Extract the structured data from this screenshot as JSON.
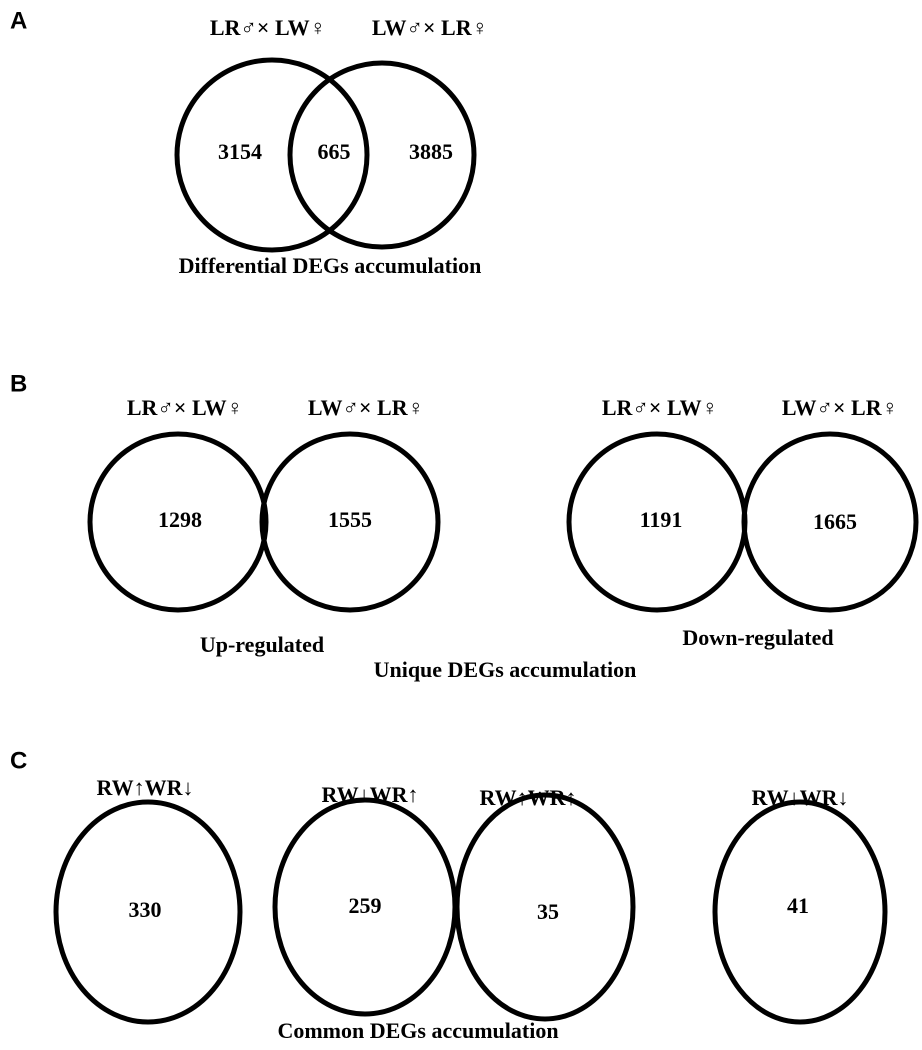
{
  "panels": [
    {
      "letter": "A",
      "sets": [
        "LR♂× LW♀",
        "LW♂× LR♀"
      ],
      "counts": [
        3154,
        665,
        3885
      ],
      "caption": "Differential DEGs accumulation"
    },
    {
      "letter": "B",
      "groups": [
        {
          "sets": [
            "LR♂× LW♀",
            "LW♂× LR♀"
          ],
          "counts": [
            1298,
            1555
          ],
          "label": "Up-regulated"
        },
        {
          "sets": [
            "LR♂× LW♀",
            "LW♂× LR♀"
          ],
          "counts": [
            1191,
            1665
          ],
          "label": "Down-regulated"
        }
      ],
      "caption": "Unique DEGs accumulation"
    },
    {
      "letter": "C",
      "groups": [
        {
          "label": "RW↑WR↓",
          "count": 330
        },
        {
          "label": "RW↓WR↑",
          "count": 259
        },
        {
          "label": "RW↑WR↑",
          "count": 35
        },
        {
          "label": "RW↓WR↓",
          "count": 41
        }
      ],
      "caption": "Common DEGs accumulation"
    }
  ]
}
